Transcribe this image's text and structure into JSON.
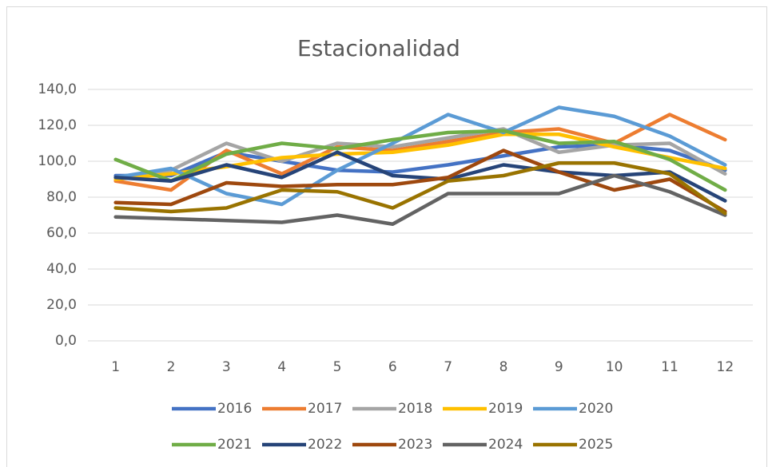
{
  "chart_data": {
    "type": "line",
    "title": "Estacionalidad",
    "categories": [
      "1",
      "2",
      "3",
      "4",
      "5",
      "6",
      "7",
      "8",
      "9",
      "10",
      "11",
      "12"
    ],
    "series": [
      {
        "name": "2016",
        "color": "#4472c4",
        "values": [
          92,
          92,
          105,
          100,
          95,
          94,
          98,
          103,
          108,
          109,
          106,
          95
        ]
      },
      {
        "name": "2017",
        "color": "#ed7d31",
        "values": [
          89,
          84,
          106,
          93,
          108,
          106,
          111,
          116,
          118,
          110,
          126,
          112
        ]
      },
      {
        "name": "2018",
        "color": "#a5a5a5",
        "values": [
          91,
          95,
          110,
          100,
          110,
          108,
          113,
          118,
          105,
          109,
          110,
          93
        ]
      },
      {
        "name": "2019",
        "color": "#ffc000",
        "values": [
          90,
          93,
          97,
          102,
          104,
          105,
          109,
          115,
          115,
          108,
          102,
          96
        ]
      },
      {
        "name": "2020",
        "color": "#5b9bd5",
        "values": [
          91,
          96,
          82,
          76,
          95,
          110,
          126,
          116,
          130,
          125,
          114,
          98
        ]
      },
      {
        "name": "2021",
        "color": "#70ad47",
        "values": [
          101,
          89,
          104,
          110,
          107,
          112,
          116,
          117,
          110,
          111,
          101,
          84
        ]
      },
      {
        "name": "2022",
        "color": "#264478",
        "values": [
          91,
          89,
          98,
          91,
          105,
          92,
          90,
          98,
          94,
          92,
          94,
          78
        ]
      },
      {
        "name": "2023",
        "color": "#9e480e",
        "values": [
          77,
          76,
          88,
          86,
          87,
          87,
          91,
          106,
          94,
          84,
          90,
          72
        ]
      },
      {
        "name": "2024",
        "color": "#636363",
        "values": [
          69,
          68,
          67,
          66,
          70,
          65,
          82,
          82,
          82,
          92,
          83,
          70
        ]
      },
      {
        "name": "2025",
        "color": "#997300",
        "values": [
          74,
          72,
          74,
          84,
          83,
          74,
          89,
          92,
          99,
          99,
          93,
          71
        ]
      }
    ],
    "ylim": [
      0,
      140
    ],
    "yticks": [
      {
        "value": 0,
        "label": "0,0"
      },
      {
        "value": 20,
        "label": "20,0"
      },
      {
        "value": 40,
        "label": "40,0"
      },
      {
        "value": 60,
        "label": "60,0"
      },
      {
        "value": 80,
        "label": "80,0"
      },
      {
        "value": 100,
        "label": "100,0"
      },
      {
        "value": 120,
        "label": "120,0"
      },
      {
        "value": 140,
        "label": "140,0"
      }
    ],
    "grid": true,
    "legend": "bottom"
  }
}
